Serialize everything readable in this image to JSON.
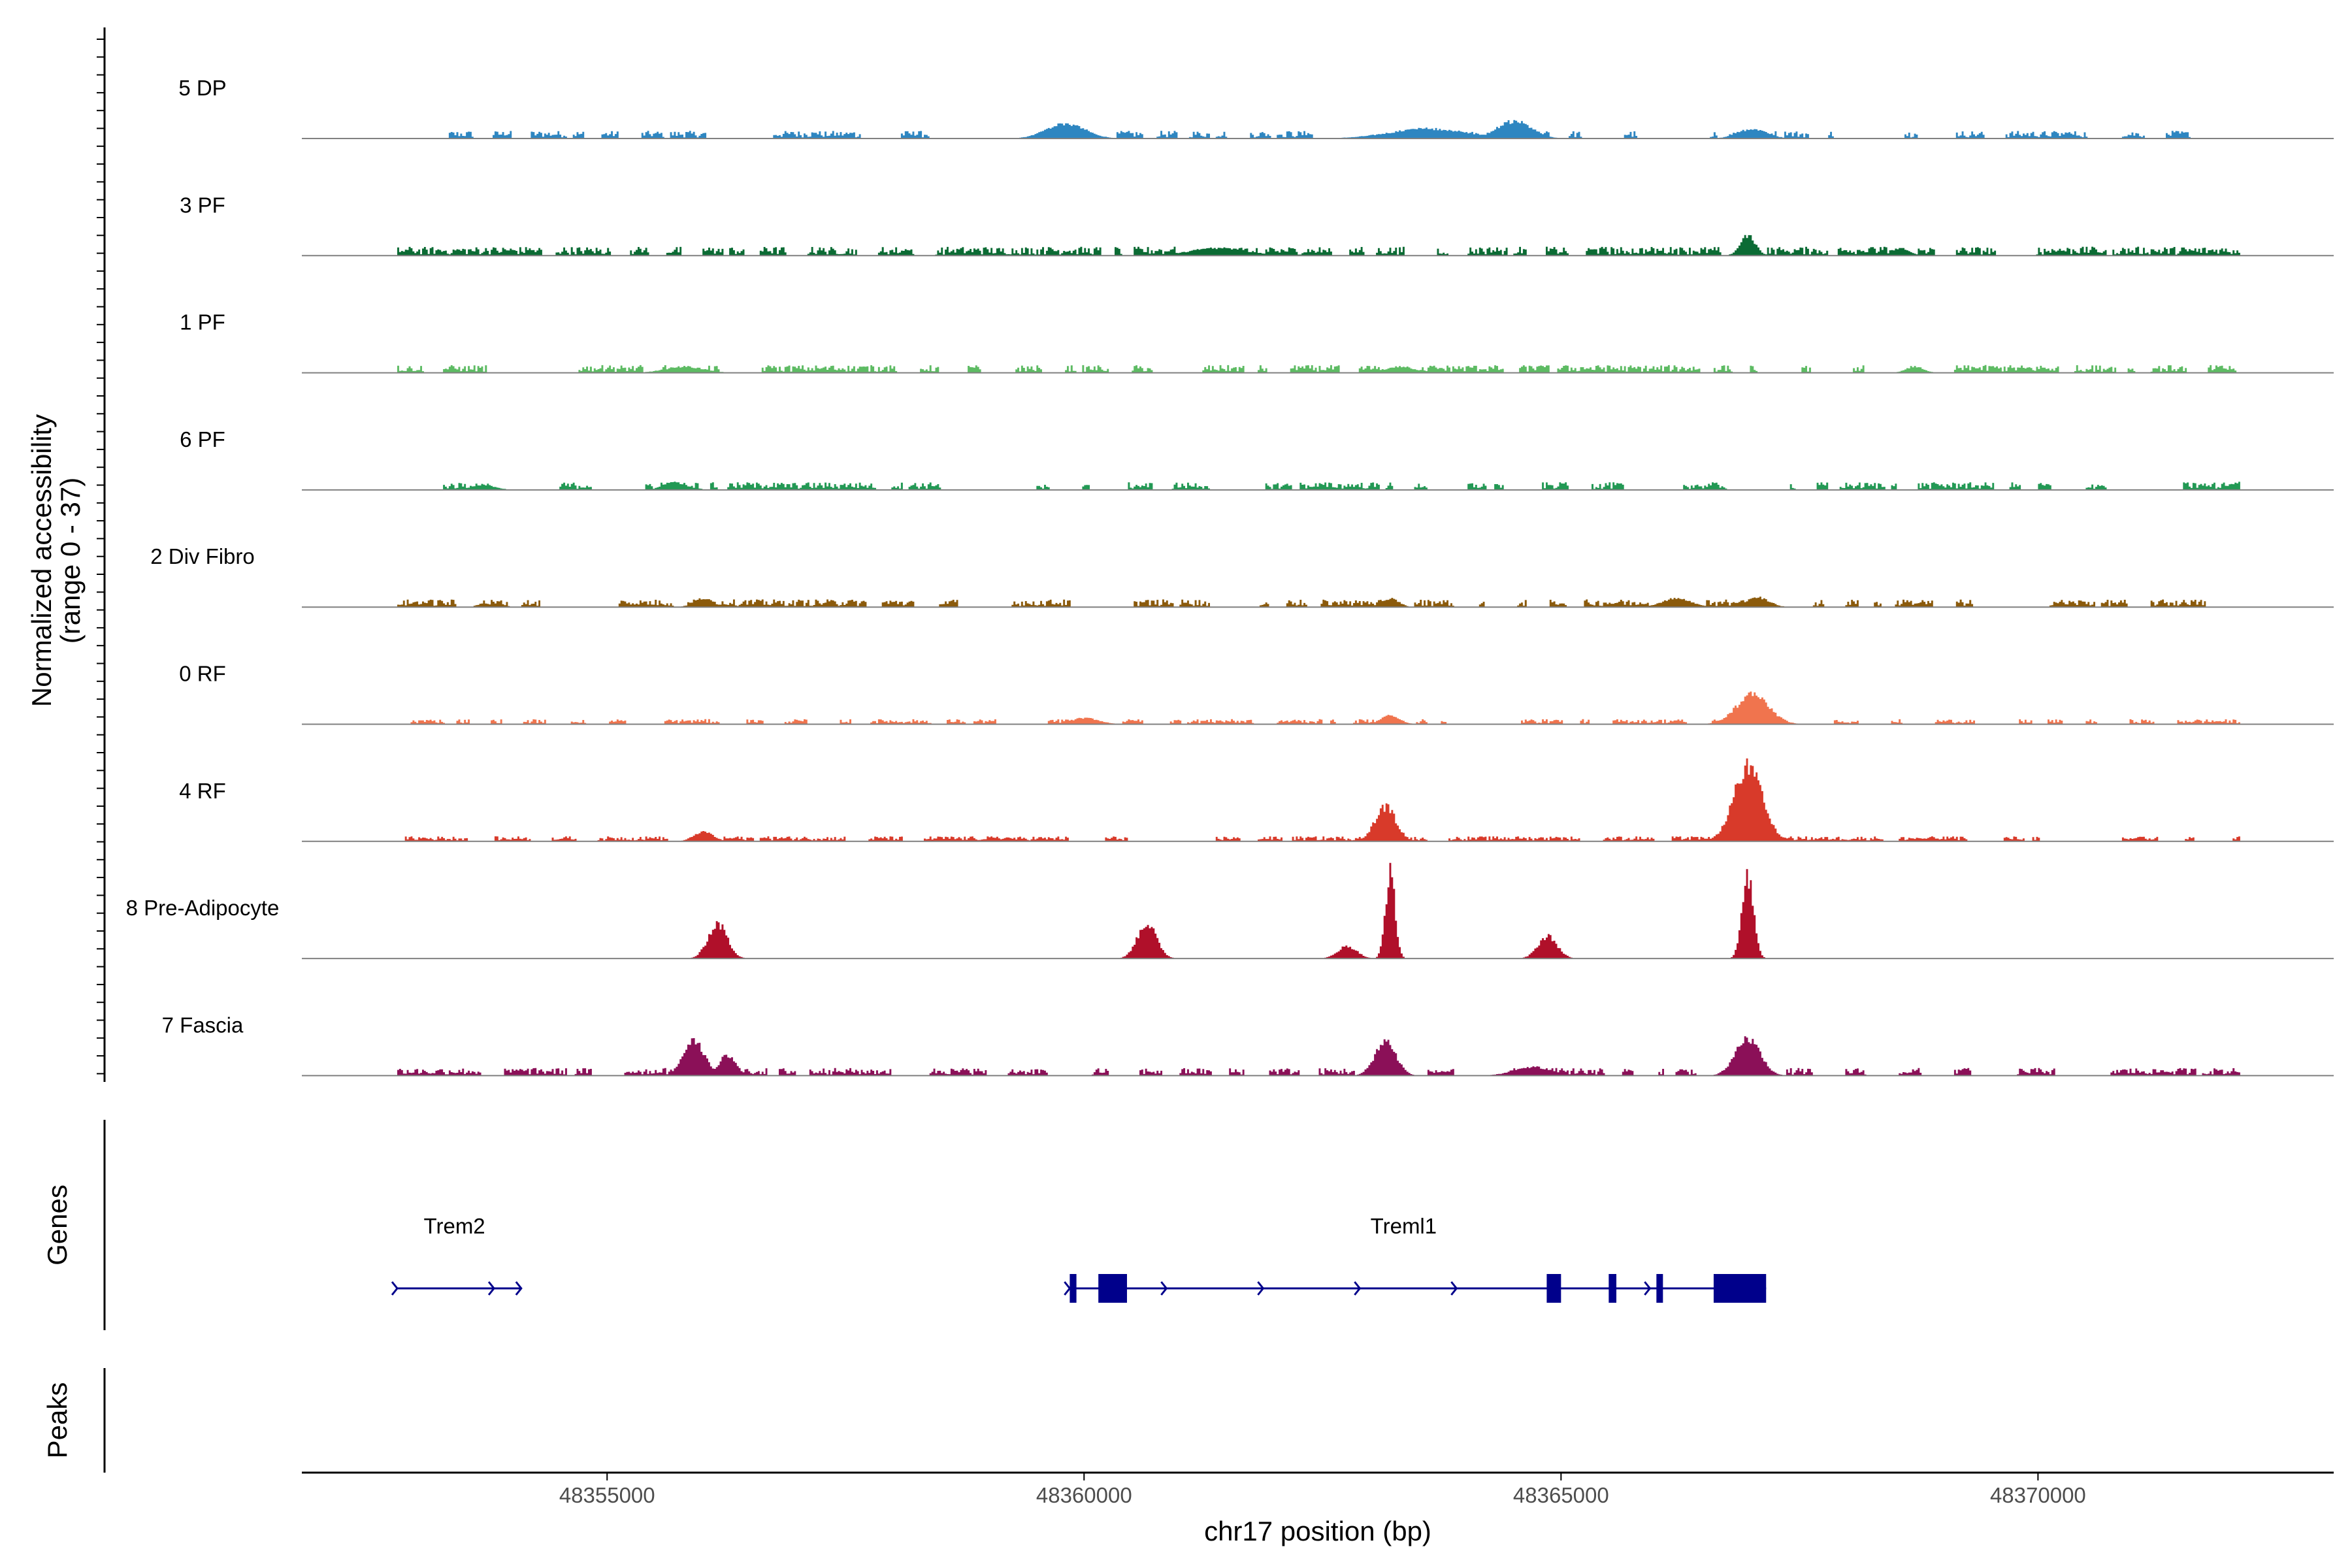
{
  "chart_data": {
    "type": "area",
    "title": "",
    "xlabel": "chr17 position (bp)",
    "ylabel_line1": "Normalized accessibility",
    "ylabel_line2": "(range 0 - 37)",
    "ylim": [
      0,
      37
    ],
    "xlim": [
      48351800,
      48373100
    ],
    "x_ticks": [
      48355000,
      48360000,
      48365000,
      48370000
    ],
    "x_tick_labels": [
      "48355000",
      "48360000",
      "48365000",
      "48370000"
    ],
    "panel_labels": {
      "genes": "Genes",
      "peaks": "Peaks"
    },
    "tracks": [
      {
        "name": "5 DP",
        "color": "#2E86C1",
        "noise": 2.5,
        "coverage": 0.45,
        "peaks": [
          [
            48359800,
            6,
            200
          ],
          [
            48364500,
            7,
            180
          ],
          [
            48363600,
            4,
            400
          ],
          [
            48367000,
            4,
            150
          ]
        ]
      },
      {
        "name": "3 PF",
        "color": "#0B6B34",
        "noise": 3,
        "coverage": 0.72,
        "peaks": [
          [
            48366950,
            8,
            80
          ],
          [
            48361400,
            3,
            300
          ],
          [
            48368550,
            3,
            90
          ]
        ]
      },
      {
        "name": "1 PF",
        "color": "#5DBB63",
        "noise": 2.5,
        "coverage": 0.7,
        "peaks": [
          [
            48355800,
            2.5,
            200
          ],
          [
            48363300,
            2.5,
            150
          ],
          [
            48368700,
            2.5,
            90
          ]
        ]
      },
      {
        "name": "6 PF",
        "color": "#229954",
        "noise": 2.5,
        "coverage": 0.55,
        "peaks": [
          [
            48372100,
            3,
            120
          ],
          [
            48355700,
            3,
            120
          ],
          [
            48353700,
            2,
            120
          ]
        ]
      },
      {
        "name": "2 Div Fibro",
        "color": "#8B5A0B",
        "noise": 2.5,
        "coverage": 0.55,
        "peaks": [
          [
            48356000,
            3.5,
            100
          ],
          [
            48363200,
            3.5,
            90
          ],
          [
            48366200,
            3.5,
            150
          ],
          [
            48367050,
            4,
            120
          ]
        ]
      },
      {
        "name": "0 RF",
        "color": "#F0744E",
        "noise": 1.5,
        "coverage": 0.5,
        "peaks": [
          [
            48367000,
            12,
            170
          ],
          [
            48363200,
            3.5,
            100
          ],
          [
            48360000,
            2.5,
            150
          ]
        ]
      },
      {
        "name": "4 RF",
        "color": "#D83A2A",
        "noise": 1.5,
        "coverage": 0.55,
        "peaks": [
          [
            48366950,
            30,
            150
          ],
          [
            48363150,
            14,
            110
          ],
          [
            48356000,
            4,
            100
          ]
        ]
      },
      {
        "name": "8 Pre-Adipocyte",
        "color": "#B0102A",
        "noise": 0,
        "coverage": 0,
        "peaks": [
          [
            48363200,
            35,
            50
          ],
          [
            48366950,
            33,
            60
          ],
          [
            48356150,
            14,
            100
          ],
          [
            48360650,
            14,
            100
          ],
          [
            48364850,
            9,
            100
          ],
          [
            48362750,
            5,
            100
          ]
        ]
      },
      {
        "name": "7 Fascia",
        "color": "#8B1058",
        "noise": 2.5,
        "coverage": 0.55,
        "peaks": [
          [
            48355900,
            14,
            110
          ],
          [
            48356250,
            8,
            90
          ],
          [
            48363150,
            14,
            110
          ],
          [
            48366950,
            15,
            130
          ],
          [
            48364700,
            3.5,
            200
          ]
        ]
      }
    ],
    "genes": [
      {
        "name": "Trem2",
        "start": 48352800,
        "end": 48354100,
        "strand": "+",
        "exons": []
      },
      {
        "name": "Treml1",
        "start": 48359850,
        "end": 48367150,
        "strand": "+",
        "exons": [
          [
            48359850,
            48359920
          ],
          [
            48360150,
            48360450
          ],
          [
            48364850,
            48365000
          ],
          [
            48365500,
            48365580
          ],
          [
            48366000,
            48366060
          ],
          [
            48366600,
            48367150
          ]
        ]
      }
    ],
    "peaks_regions": []
  }
}
